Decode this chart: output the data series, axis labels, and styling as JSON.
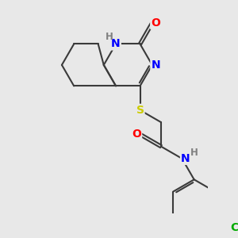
{
  "bg_color": "#e8e8e8",
  "bond_color": "#3a3a3a",
  "bond_width": 1.5,
  "atom_colors": {
    "N": "#0000ff",
    "O": "#ff0000",
    "S": "#cccc00",
    "C": "#3a3a3a",
    "Cl": "#00aa00",
    "H": "#808080"
  },
  "font_size_atom": 10,
  "font_size_h": 8.5
}
